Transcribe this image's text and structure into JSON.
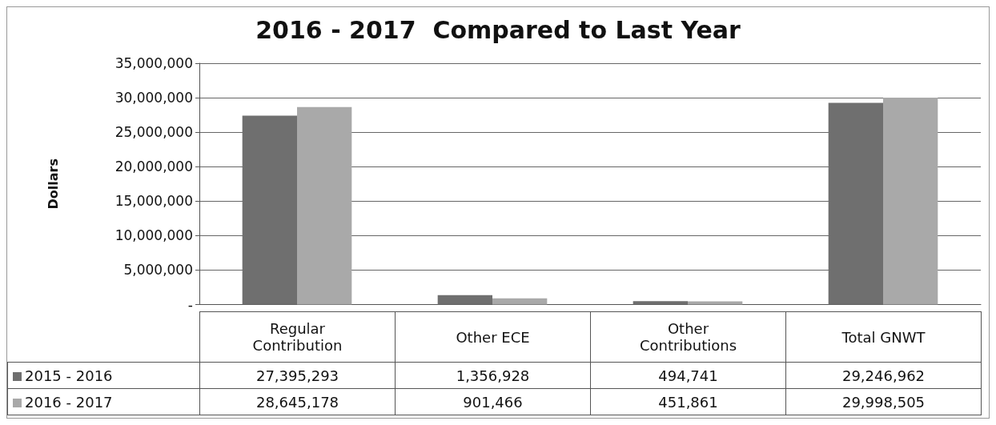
{
  "chart_data": {
    "type": "bar",
    "title": "2016 - 2017  Compared to Last Year",
    "ylabel": "Dollars",
    "categories": [
      "Regular Contribution",
      "Other ECE",
      "Other Contributions",
      "Total GNWT"
    ],
    "series": [
      {
        "name": "2015 - 2016",
        "color": "#6f6f6f",
        "values": [
          27395293,
          1356928,
          494741,
          29246962
        ],
        "value_labels": [
          "27,395,293",
          "1,356,928",
          "494,741",
          "29,246,962"
        ]
      },
      {
        "name": "2016 - 2017",
        "color": "#a9a9a9",
        "values": [
          28645178,
          901466,
          451861,
          29998505
        ],
        "value_labels": [
          "28,645,178",
          "901,466",
          "451,861",
          "29,998,505"
        ]
      }
    ],
    "ylim": [
      0,
      35000000
    ],
    "yticks": [
      {
        "value": 0,
        "label": "-"
      },
      {
        "value": 5000000,
        "label": "5,000,000"
      },
      {
        "value": 10000000,
        "label": "10,000,000"
      },
      {
        "value": 15000000,
        "label": "15,000,000"
      },
      {
        "value": 20000000,
        "label": "20,000,000"
      },
      {
        "value": 25000000,
        "label": "25,000,000"
      },
      {
        "value": 30000000,
        "label": "30,000,000"
      },
      {
        "value": 35000000,
        "label": "35,000,000"
      }
    ],
    "grid": "y",
    "legend": "bottom"
  }
}
